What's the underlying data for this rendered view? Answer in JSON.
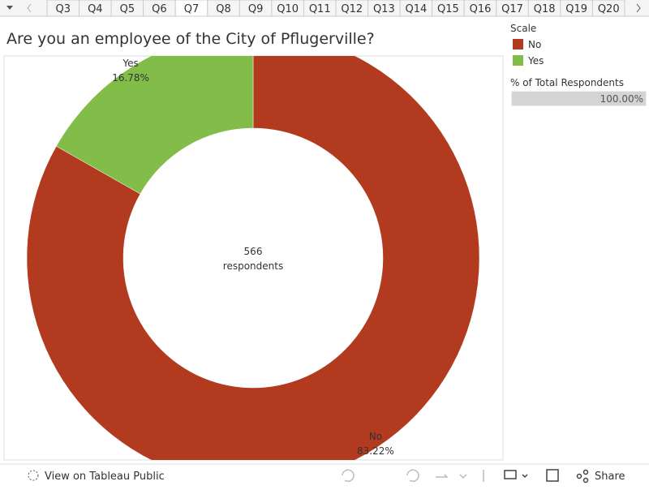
{
  "tabs": [
    "Q3",
    "Q4",
    "Q5",
    "Q6",
    "Q7",
    "Q8",
    "Q9",
    "Q10",
    "Q11",
    "Q12",
    "Q13",
    "Q14",
    "Q15",
    "Q16",
    "Q17",
    "Q18",
    "Q19",
    "Q20"
  ],
  "active_tab": "Q7",
  "chart_data": {
    "type": "donut",
    "title": "Are you an employee of the City of Pflugerville?",
    "categories": [
      "No",
      "Yes"
    ],
    "values": [
      83.22,
      16.78
    ],
    "value_labels": [
      "83.22%",
      "16.78%"
    ],
    "colors": [
      "#b13a1f",
      "#82bd4a"
    ],
    "center_value": 566,
    "center_text": "respondents",
    "legend_title": "Scale"
  },
  "size_legend": {
    "title": "% of Total Respondents",
    "value": 100,
    "label": "100.00%"
  },
  "footer": {
    "view": "View on Tableau Public",
    "share": "Share"
  }
}
